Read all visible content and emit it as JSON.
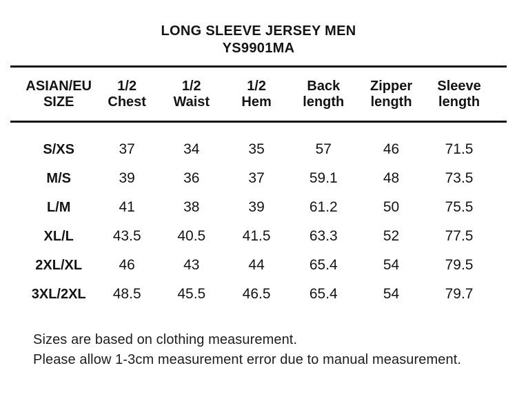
{
  "header": {
    "title": "LONG SLEEVE JERSEY MEN",
    "model": "YS9901MA"
  },
  "chart_data": {
    "type": "table",
    "title": "LONG SLEEVE JERSEY MEN",
    "subtitle": "YS9901MA",
    "column_headers": [
      {
        "line1": "ASIAN/EU",
        "line2": "SIZE"
      },
      {
        "line1": "1/2",
        "line2": "Chest"
      },
      {
        "line1": "1/2",
        "line2": "Waist"
      },
      {
        "line1": "1/2",
        "line2": "Hem"
      },
      {
        "line1": "Back",
        "line2": "length"
      },
      {
        "line1": "Zipper",
        "line2": "length"
      },
      {
        "line1": "Sleeve",
        "line2": "length"
      }
    ],
    "rows": [
      {
        "size": "S/XS",
        "values": [
          37,
          34,
          35,
          57,
          46,
          71.5
        ]
      },
      {
        "size": "M/S",
        "values": [
          39,
          36,
          37,
          59.1,
          48,
          73.5
        ]
      },
      {
        "size": "L/M",
        "values": [
          41,
          38,
          39,
          61.2,
          50,
          75.5
        ]
      },
      {
        "size": "XL/L",
        "values": [
          43.5,
          40.5,
          41.5,
          63.3,
          52,
          77.5
        ]
      },
      {
        "size": "2XL/XL",
        "values": [
          46,
          43,
          44,
          65.4,
          54,
          79.5
        ]
      },
      {
        "size": "3XL/2XL",
        "values": [
          48.5,
          45.5,
          46.5,
          65.4,
          54,
          79.7
        ]
      }
    ],
    "notes": [
      "Sizes are based on clothing measurement.",
      "Please allow 1-3cm measurement error due to manual measurement."
    ]
  },
  "colors": {
    "text": "#141414",
    "background": "#ffffff",
    "rule": "#141414"
  }
}
